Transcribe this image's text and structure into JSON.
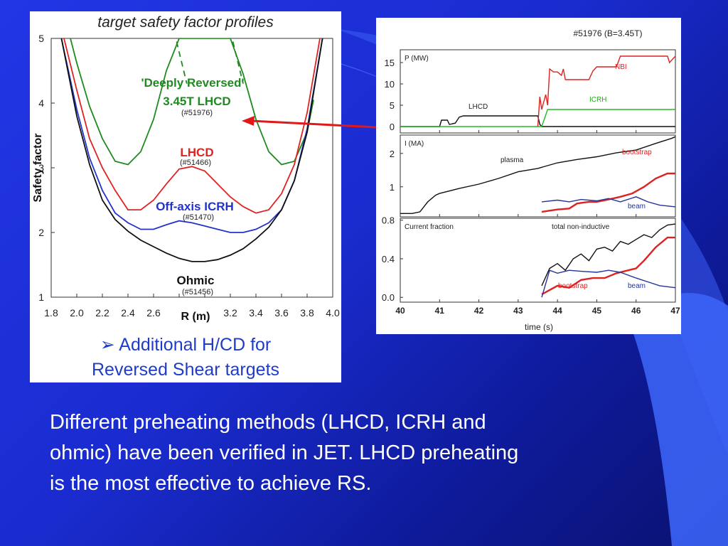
{
  "chart_data": [
    {
      "type": "line",
      "title": "target safety factor profiles",
      "xlabel": "R (m)",
      "ylabel": "Safety factor",
      "xlim": [
        1.8,
        4.0
      ],
      "ylim": [
        1,
        5
      ],
      "xticks": [
        "1.8",
        "2.0",
        "2.2",
        "2.4",
        "2.6",
        "2.8",
        "3.0",
        "3.2",
        "3.4",
        "3.6",
        "3.8",
        "4.0"
      ],
      "yticks": [
        "1",
        "2",
        "3",
        "4",
        "5"
      ],
      "series": [
        {
          "name": "'Deeply Reversed' 3.45T LHCD",
          "shot": "(#51976)",
          "color": "#1f8a1f",
          "x": [
            1.95,
            2.0,
            2.1,
            2.2,
            2.3,
            2.4,
            2.5,
            2.6,
            2.7,
            2.8,
            3.2,
            3.3,
            3.4,
            3.5,
            3.6,
            3.7,
            3.8,
            3.85
          ],
          "y": [
            5.0,
            4.62,
            3.95,
            3.45,
            3.1,
            3.05,
            3.25,
            3.75,
            4.5,
            5.0,
            5.0,
            4.45,
            3.75,
            3.25,
            3.05,
            3.1,
            3.55,
            4.05
          ]
        },
        {
          "name": "LHCD",
          "shot": "(#51466)",
          "color": "#e12222",
          "x": [
            1.9,
            2.0,
            2.1,
            2.2,
            2.3,
            2.4,
            2.5,
            2.6,
            2.7,
            2.8,
            2.9,
            3.0,
            3.1,
            3.2,
            3.3,
            3.4,
            3.5,
            3.6,
            3.7,
            3.8,
            3.9
          ],
          "y": [
            5.0,
            4.2,
            3.45,
            3.0,
            2.65,
            2.35,
            2.35,
            2.5,
            2.75,
            2.98,
            3.02,
            2.95,
            2.75,
            2.55,
            2.4,
            2.3,
            2.35,
            2.6,
            3.05,
            3.85,
            5.0
          ]
        },
        {
          "name": "Off-axis ICRH",
          "shot": "(#51470)",
          "color": "#2233cc",
          "x": [
            1.88,
            2.0,
            2.1,
            2.2,
            2.3,
            2.4,
            2.5,
            2.6,
            2.7,
            2.8,
            2.9,
            3.0,
            3.1,
            3.2,
            3.3,
            3.4,
            3.5,
            3.6,
            3.7,
            3.8,
            3.92
          ],
          "y": [
            5.0,
            3.9,
            3.15,
            2.65,
            2.3,
            2.15,
            2.05,
            2.05,
            2.12,
            2.18,
            2.15,
            2.1,
            2.05,
            2.0,
            2.0,
            2.05,
            2.15,
            2.35,
            2.8,
            3.6,
            5.0
          ]
        },
        {
          "name": "Ohmic",
          "shot": "(#51456)",
          "color": "#111111",
          "x": [
            1.88,
            2.0,
            2.1,
            2.2,
            2.3,
            2.4,
            2.5,
            2.6,
            2.7,
            2.8,
            2.9,
            3.0,
            3.1,
            3.2,
            3.3,
            3.4,
            3.5,
            3.6,
            3.7,
            3.8,
            3.92
          ],
          "y": [
            5.0,
            3.8,
            3.05,
            2.5,
            2.2,
            2.02,
            1.88,
            1.78,
            1.68,
            1.6,
            1.55,
            1.55,
            1.58,
            1.65,
            1.75,
            1.9,
            2.08,
            2.35,
            2.8,
            3.55,
            5.0
          ]
        }
      ],
      "labels": {
        "deep_reversed_1": "'Deeply Reversed'",
        "deep_reversed_2": "3.45T LHCD",
        "deep_reversed_shot": "(#51976)",
        "lhcd": "LHCD",
        "lhcd_shot": "(#51466)",
        "icrh": "Off-axis ICRH",
        "icrh_shot": "(#51470)",
        "ohmic": "Ohmic",
        "ohmic_shot": "(#51456)"
      }
    },
    {
      "type": "line",
      "title": "#51976 (B=3.45T)",
      "xlabel": "time (s)",
      "xlim": [
        40,
        47
      ],
      "xticks": [
        "40",
        "41",
        "42",
        "43",
        "44",
        "45",
        "46",
        "47"
      ],
      "panels": [
        {
          "ylabel": "P (MW)",
          "yticks": [
            "15",
            "10",
            "5",
            "0"
          ],
          "ylim": [
            -1.5,
            18
          ],
          "series": [
            {
              "name": "LHCD",
              "color": "#111111",
              "x": [
                40.0,
                41.0,
                41.05,
                41.2,
                41.25,
                41.4,
                41.5,
                41.6,
                42.0,
                43.0,
                43.5,
                43.55,
                43.6,
                47.0
              ],
              "y": [
                0,
                0,
                1.5,
                1.5,
                0.5,
                0.8,
                2.2,
                2.5,
                2.5,
                2.5,
                2.5,
                0.5,
                0,
                0
              ]
            },
            {
              "name": "ICRH",
              "color": "#22bb22",
              "x": [
                40.0,
                43.6,
                43.75,
                44.0,
                47.0
              ],
              "y": [
                0,
                0,
                4.0,
                4.0,
                4.0
              ]
            },
            {
              "name": "NBI",
              "color": "#dd2222",
              "x": [
                43.5,
                43.55,
                43.6,
                43.7,
                43.75,
                43.8,
                43.9,
                44.0,
                44.1,
                44.15,
                44.2,
                44.8,
                44.9,
                45.0,
                45.5,
                45.6,
                45.7,
                46.0,
                46.3,
                46.5,
                46.8,
                46.85,
                47.0
              ],
              "y": [
                0,
                7.0,
                4.0,
                7.5,
                5.0,
                13.5,
                12.8,
                12.8,
                12.0,
                13.5,
                11.0,
                11.0,
                13.0,
                14.0,
                14.0,
                16.5,
                16.5,
                16.5,
                16.5,
                16.5,
                16.5,
                15.0,
                16.5
              ]
            }
          ],
          "labels": {
            "lhcd": "LHCD",
            "icrh": "ICRH",
            "nbi": "NBI"
          }
        },
        {
          "ylabel": "I (MA)",
          "yticks": [
            "2",
            "1"
          ],
          "ylim": [
            0.1,
            2.55
          ],
          "series": [
            {
              "name": "plasma",
              "color": "#111111",
              "x": [
                40.0,
                40.3,
                40.5,
                40.7,
                40.9,
                41.0,
                41.5,
                42.0,
                42.5,
                43.0,
                43.5,
                44.0,
                44.5,
                45.0,
                45.5,
                46.0,
                46.5,
                46.9,
                47.0
              ],
              "y": [
                0.2,
                0.2,
                0.25,
                0.55,
                0.75,
                0.8,
                0.95,
                1.08,
                1.25,
                1.45,
                1.55,
                1.72,
                1.82,
                1.9,
                2.02,
                2.1,
                2.3,
                2.45,
                2.5
              ]
            },
            {
              "name": "bootstrap",
              "color": "#dd2222",
              "x": [
                43.6,
                44.0,
                44.3,
                44.5,
                44.8,
                45.0,
                45.3,
                45.6,
                45.9,
                46.2,
                46.5,
                46.8,
                47.0
              ],
              "y": [
                0.25,
                0.32,
                0.35,
                0.5,
                0.55,
                0.55,
                0.62,
                0.7,
                0.8,
                1.0,
                1.25,
                1.4,
                1.4
              ]
            },
            {
              "name": "beam",
              "color": "#223399",
              "x": [
                43.6,
                44.0,
                44.3,
                44.6,
                45.0,
                45.3,
                45.6,
                46.0,
                46.3,
                46.6,
                47.0
              ],
              "y": [
                0.55,
                0.6,
                0.55,
                0.62,
                0.58,
                0.65,
                0.55,
                0.7,
                0.55,
                0.45,
                0.4
              ]
            }
          ],
          "labels": {
            "plasma": "plasma",
            "bootstrap": "bootstrap",
            "beam": "beam"
          }
        },
        {
          "ylabel": "Current fraction",
          "yticks": [
            "0.8",
            "0.4",
            "0.0"
          ],
          "ylim": [
            -0.05,
            0.82
          ],
          "series": [
            {
              "name": "total non-inductive",
              "color": "#111111",
              "x": [
                43.6,
                43.8,
                44.0,
                44.2,
                44.4,
                44.6,
                44.8,
                45.0,
                45.2,
                45.4,
                45.6,
                45.8,
                46.0,
                46.2,
                46.4,
                46.6,
                46.8,
                47.0
              ],
              "y": [
                0.12,
                0.3,
                0.35,
                0.28,
                0.4,
                0.45,
                0.38,
                0.5,
                0.52,
                0.48,
                0.58,
                0.55,
                0.6,
                0.65,
                0.62,
                0.7,
                0.75,
                0.76
              ]
            },
            {
              "name": "bootstrap",
              "color": "#dd2222",
              "x": [
                43.6,
                44.0,
                44.3,
                44.6,
                44.9,
                45.2,
                45.5,
                45.8,
                46.0,
                46.2,
                46.5,
                46.8,
                47.0
              ],
              "y": [
                0.03,
                0.12,
                0.1,
                0.18,
                0.2,
                0.2,
                0.25,
                0.28,
                0.3,
                0.38,
                0.52,
                0.62,
                0.62
              ]
            },
            {
              "name": "beam",
              "color": "#223399",
              "x": [
                43.6,
                43.8,
                44.0,
                44.3,
                44.6,
                45.0,
                45.3,
                45.6,
                46.0,
                46.3,
                46.6,
                47.0
              ],
              "y": [
                0.0,
                0.28,
                0.25,
                0.28,
                0.27,
                0.26,
                0.28,
                0.26,
                0.2,
                0.16,
                0.12,
                0.1
              ]
            }
          ],
          "labels": {
            "title": "Current fraction",
            "total": "total non-inductive",
            "bootstrap": "bootstrap",
            "beam": "beam"
          }
        }
      ]
    }
  ],
  "caption": {
    "line1": "➢ Additional H/CD for",
    "line2": "Reversed Shear targets"
  },
  "body_text": {
    "line1": "Different preheating methods (LHCD, ICRH and",
    "line2": "ohmic) have been verified in  JET. LHCD preheating",
    "line3": "is the most effective to achieve RS."
  },
  "colors": {
    "background": "#1a2ccf",
    "arrow": "#e01818",
    "caption": "#1f3cc9"
  }
}
